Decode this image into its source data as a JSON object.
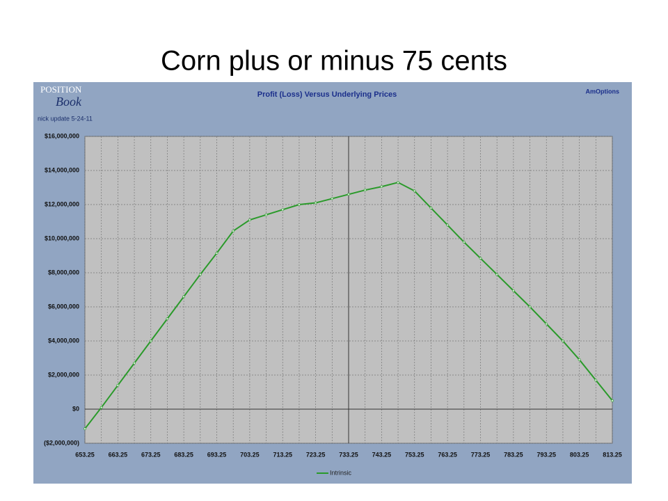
{
  "slide_title": "Corn plus or minus 75 cents",
  "chart_data": {
    "type": "line",
    "title": "Profit (Loss) Versus Underlying Prices",
    "brand": "AmOptions",
    "logo": [
      "POSITION",
      "Book"
    ],
    "note": "nick update 5-24-11",
    "x": [
      653.25,
      658.25,
      663.25,
      668.25,
      673.25,
      678.25,
      683.25,
      688.25,
      693.25,
      698.25,
      703.25,
      708.25,
      713.25,
      718.25,
      723.25,
      728.25,
      733.25,
      738.25,
      743.25,
      748.25,
      753.25,
      758.25,
      763.25,
      768.25,
      773.25,
      778.25,
      783.25,
      788.25,
      793.25,
      798.25,
      803.25,
      808.25,
      813.25
    ],
    "series": [
      {
        "name": "Intrinsic",
        "color": "#2a9a2a",
        "values": [
          -1150000,
          100000,
          1400000,
          2700000,
          4000000,
          5300000,
          6600000,
          7900000,
          9150000,
          10450000,
          11100000,
          11400000,
          11700000,
          12000000,
          12100000,
          12350000,
          12600000,
          12850000,
          13050000,
          13300000,
          12800000,
          11800000,
          10800000,
          9800000,
          8850000,
          7900000,
          6950000,
          6000000,
          5000000,
          4000000,
          2900000,
          1700000,
          500000
        ]
      }
    ],
    "xlim": [
      653.25,
      813.25
    ],
    "xticks": [
      653.25,
      663.25,
      673.25,
      683.25,
      693.25,
      703.25,
      713.25,
      723.25,
      733.25,
      743.25,
      753.25,
      763.25,
      773.25,
      783.25,
      793.25,
      803.25,
      813.25
    ],
    "ylim": [
      -2000000,
      16000000
    ],
    "yticks": [
      {
        "value": -2000000,
        "label": "($2,000,000)"
      },
      {
        "value": 0,
        "label": "$0"
      },
      {
        "value": 2000000,
        "label": "$2,000,000"
      },
      {
        "value": 4000000,
        "label": "$4,000,000"
      },
      {
        "value": 6000000,
        "label": "$6,000,000"
      },
      {
        "value": 8000000,
        "label": "$8,000,000"
      },
      {
        "value": 10000000,
        "label": "$10,000,000"
      },
      {
        "value": 12000000,
        "label": "$12,000,000"
      },
      {
        "value": 14000000,
        "label": "$14,000,000"
      },
      {
        "value": 16000000,
        "label": "$16,000,000"
      }
    ],
    "reference_lines": {
      "x": 733.25,
      "y": 0
    },
    "grid": true
  }
}
